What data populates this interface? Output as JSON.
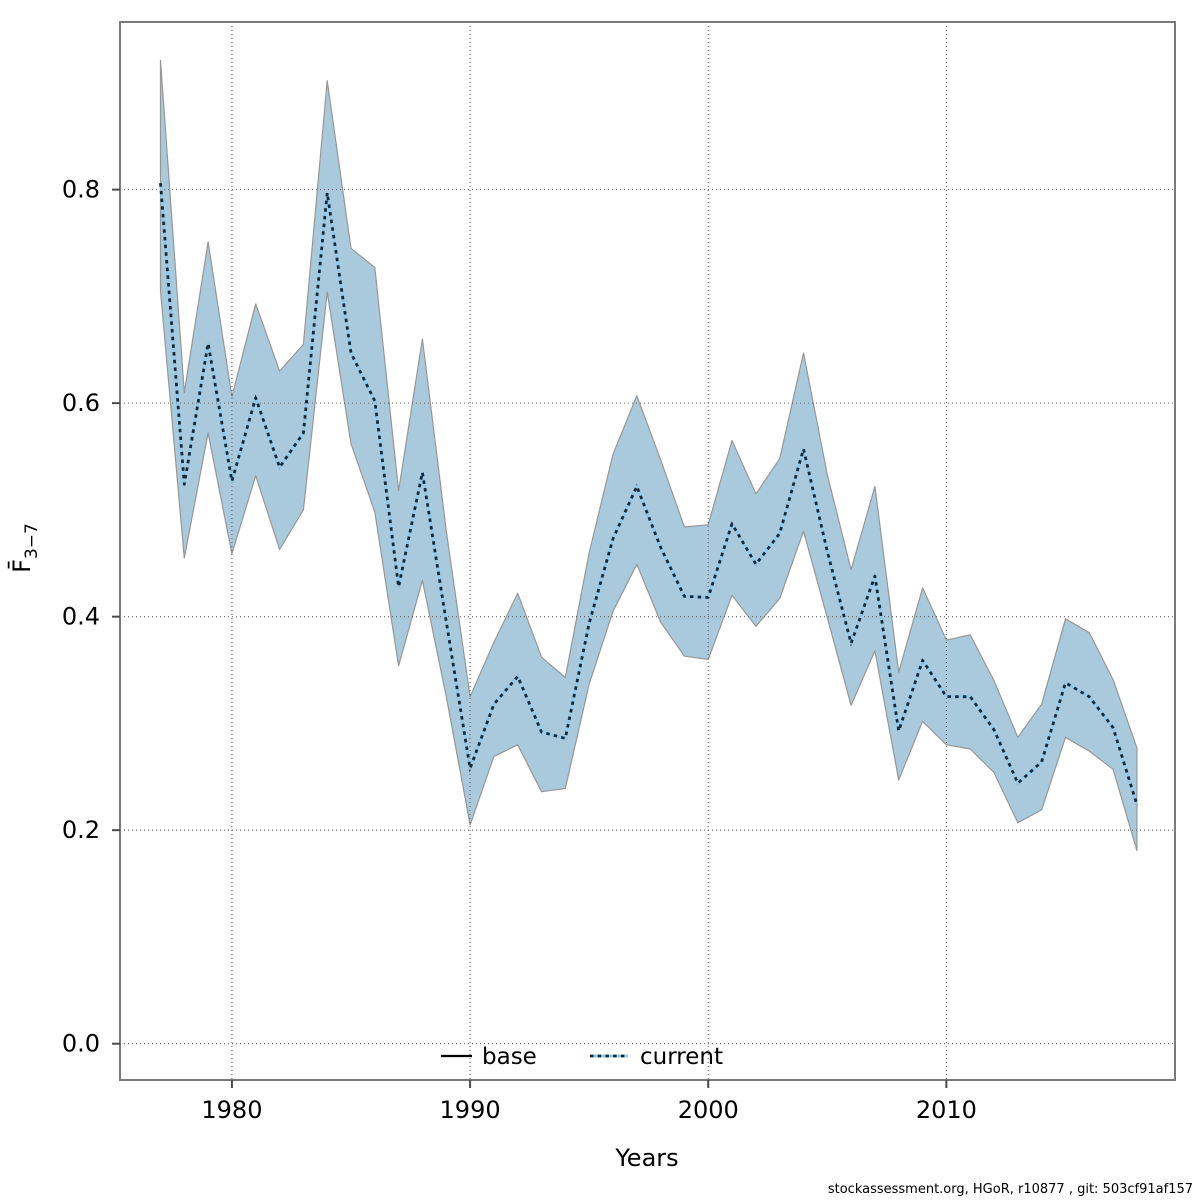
{
  "caption": {
    "text": "stockassessment.org, HGoR, r10877 , git: 503cf91af157"
  },
  "colors": {
    "ribbon_fill": "#a9cadd",
    "ribbon_edge": "#979797",
    "base_line": "#000000",
    "current_core": "#94c8e8",
    "current_dots": "#122a3a",
    "gridline": "#4d4d4d",
    "axis_box": "#7a7a7a",
    "tick": "#4a4a4a"
  },
  "chart_data": {
    "type": "line",
    "title": "",
    "xlabel": "Years",
    "ylabel": "F̄3−7",
    "ylabel_main": "F̄",
    "ylabel_sub": "3−7",
    "grid": true,
    "legend_position": "bottom-center-inside",
    "legend": [
      "base",
      "current"
    ],
    "x_ticks": [
      1980,
      1990,
      2000,
      2010
    ],
    "y_ticks": [
      0.0,
      0.2,
      0.4,
      0.6,
      0.8
    ],
    "xlim": [
      1975.3,
      2019.6
    ],
    "ylim": [
      -0.034,
      0.957
    ],
    "x": [
      1977,
      1978,
      1979,
      1980,
      1981,
      1982,
      1983,
      1984,
      1985,
      1986,
      1987,
      1988,
      1989,
      1990,
      1991,
      1992,
      1993,
      1994,
      1995,
      1996,
      1997,
      1998,
      1999,
      2000,
      2001,
      2002,
      2003,
      2004,
      2005,
      2006,
      2007,
      2008,
      2009,
      2010,
      2011,
      2012,
      2013,
      2014,
      2015,
      2016,
      2017,
      2018
    ],
    "series": [
      {
        "name": "base",
        "style": "solid",
        "values": [
          0.806,
          0.524,
          0.656,
          0.527,
          0.605,
          0.54,
          0.572,
          0.797,
          0.647,
          0.602,
          0.428,
          0.535,
          0.395,
          0.258,
          0.318,
          0.344,
          0.292,
          0.286,
          0.394,
          0.473,
          0.522,
          0.465,
          0.419,
          0.418,
          0.487,
          0.449,
          0.478,
          0.557,
          0.461,
          0.375,
          0.438,
          0.293,
          0.359,
          0.325,
          0.325,
          0.294,
          0.244,
          0.264,
          0.338,
          0.325,
          0.296,
          0.224
        ]
      },
      {
        "name": "current",
        "style": "dotted",
        "values": [
          0.806,
          0.524,
          0.656,
          0.527,
          0.605,
          0.54,
          0.572,
          0.797,
          0.647,
          0.602,
          0.428,
          0.535,
          0.395,
          0.258,
          0.318,
          0.344,
          0.292,
          0.286,
          0.394,
          0.473,
          0.522,
          0.465,
          0.419,
          0.418,
          0.487,
          0.449,
          0.478,
          0.557,
          0.461,
          0.375,
          0.438,
          0.293,
          0.359,
          0.325,
          0.325,
          0.294,
          0.244,
          0.264,
          0.338,
          0.325,
          0.296,
          0.224
        ]
      }
    ],
    "ribbon": {
      "series": "current",
      "upper": [
        0.921,
        0.61,
        0.751,
        0.606,
        0.693,
        0.63,
        0.655,
        0.902,
        0.745,
        0.727,
        0.518,
        0.66,
        0.48,
        0.325,
        0.376,
        0.422,
        0.362,
        0.343,
        0.46,
        0.552,
        0.607,
        0.547,
        0.484,
        0.486,
        0.565,
        0.515,
        0.548,
        0.647,
        0.533,
        0.444,
        0.522,
        0.348,
        0.427,
        0.378,
        0.383,
        0.34,
        0.287,
        0.318,
        0.398,
        0.385,
        0.341,
        0.277
      ],
      "lower": [
        0.705,
        0.455,
        0.572,
        0.459,
        0.532,
        0.463,
        0.5,
        0.704,
        0.562,
        0.498,
        0.354,
        0.434,
        0.325,
        0.205,
        0.269,
        0.28,
        0.236,
        0.239,
        0.337,
        0.405,
        0.449,
        0.395,
        0.363,
        0.36,
        0.42,
        0.391,
        0.417,
        0.48,
        0.399,
        0.317,
        0.368,
        0.247,
        0.302,
        0.28,
        0.276,
        0.254,
        0.207,
        0.219,
        0.287,
        0.274,
        0.257,
        0.181
      ]
    }
  }
}
